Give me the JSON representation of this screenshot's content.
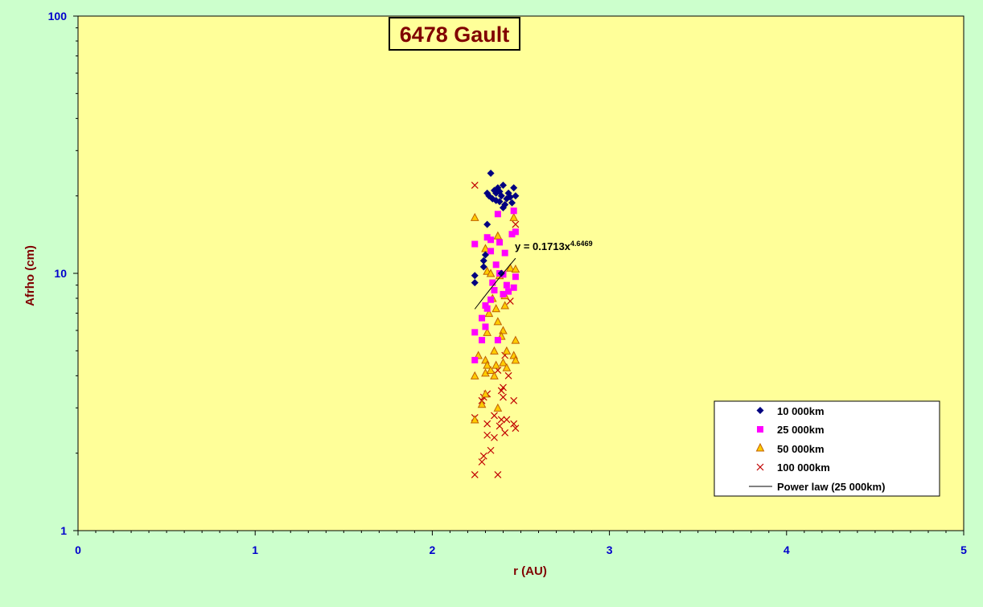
{
  "chart_data": {
    "type": "scatter",
    "title": "6478 Gault",
    "xlabel": "r (AU)",
    "ylabel": "Afrho (cm)",
    "xlim": [
      0,
      5
    ],
    "ylim": [
      1,
      100
    ],
    "y_scale": "log",
    "x_ticks": [
      "0",
      "1",
      "2",
      "3",
      "4",
      "5"
    ],
    "y_ticks": [
      "1",
      "10",
      "100"
    ],
    "grid": false,
    "legend_position": "bottom-right",
    "colors": {
      "page_background": "#ccffcc",
      "plot_background": "#ffff99",
      "title_text": "#800000",
      "axis_label": "#800000",
      "tick_label": "#0000cc"
    },
    "series": [
      {
        "name": "10 000km",
        "marker": "diamond",
        "color": "#000080",
        "points": [
          [
            2.33,
            24.5
          ],
          [
            2.31,
            20.5
          ],
          [
            2.32,
            20.0
          ],
          [
            2.34,
            19.5
          ],
          [
            2.35,
            21.0
          ],
          [
            2.36,
            20.5
          ],
          [
            2.37,
            21.5
          ],
          [
            2.38,
            19.0
          ],
          [
            2.39,
            20.0
          ],
          [
            2.4,
            22.0
          ],
          [
            2.41,
            18.5
          ],
          [
            2.42,
            19.5
          ],
          [
            2.43,
            20.5
          ],
          [
            2.44,
            19.8
          ],
          [
            2.45,
            18.8
          ],
          [
            2.46,
            21.5
          ],
          [
            2.47,
            20.0
          ],
          [
            2.4,
            18.0
          ],
          [
            2.38,
            20.8
          ],
          [
            2.36,
            19.2
          ],
          [
            2.31,
            15.5
          ],
          [
            2.3,
            11.8
          ],
          [
            2.29,
            11.2
          ],
          [
            2.29,
            10.6
          ],
          [
            2.24,
            9.8
          ],
          [
            2.24,
            9.2
          ],
          [
            2.39,
            10.0
          ]
        ]
      },
      {
        "name": "25 000km",
        "marker": "square",
        "color": "#ff00ff",
        "points": [
          [
            2.46,
            17.5
          ],
          [
            2.37,
            17.0
          ],
          [
            2.24,
            13.0
          ],
          [
            2.31,
            13.8
          ],
          [
            2.33,
            13.5
          ],
          [
            2.45,
            14.2
          ],
          [
            2.47,
            14.5
          ],
          [
            2.38,
            13.2
          ],
          [
            2.33,
            12.2
          ],
          [
            2.41,
            12.0
          ],
          [
            2.36,
            10.8
          ],
          [
            2.38,
            10.0
          ],
          [
            2.4,
            9.9
          ],
          [
            2.34,
            9.2
          ],
          [
            2.42,
            9.0
          ],
          [
            2.46,
            8.8
          ],
          [
            2.47,
            9.7
          ],
          [
            2.35,
            8.6
          ],
          [
            2.4,
            8.3
          ],
          [
            2.43,
            8.5
          ],
          [
            2.33,
            7.9
          ],
          [
            2.3,
            7.5
          ],
          [
            2.31,
            7.3
          ],
          [
            2.28,
            6.7
          ],
          [
            2.3,
            6.2
          ],
          [
            2.24,
            5.9
          ],
          [
            2.28,
            5.5
          ],
          [
            2.37,
            5.5
          ],
          [
            2.24,
            4.6
          ]
        ]
      },
      {
        "name": "50 000km",
        "marker": "triangle",
        "color": "#ff9900",
        "points": [
          [
            2.24,
            16.5
          ],
          [
            2.46,
            16.5
          ],
          [
            2.37,
            14.0
          ],
          [
            2.3,
            12.5
          ],
          [
            2.31,
            10.2
          ],
          [
            2.33,
            10.0
          ],
          [
            2.38,
            9.8
          ],
          [
            2.44,
            10.5
          ],
          [
            2.47,
            10.4
          ],
          [
            2.41,
            8.2
          ],
          [
            2.34,
            8.0
          ],
          [
            2.36,
            7.3
          ],
          [
            2.41,
            7.5
          ],
          [
            2.32,
            7.0
          ],
          [
            2.37,
            6.5
          ],
          [
            2.31,
            5.9
          ],
          [
            2.4,
            6.0
          ],
          [
            2.39,
            5.7
          ],
          [
            2.47,
            5.5
          ],
          [
            2.26,
            4.8
          ],
          [
            2.3,
            4.6
          ],
          [
            2.35,
            5.0
          ],
          [
            2.42,
            5.0
          ],
          [
            2.46,
            4.8
          ],
          [
            2.47,
            4.6
          ],
          [
            2.31,
            4.4
          ],
          [
            2.36,
            4.4
          ],
          [
            2.4,
            4.5
          ],
          [
            2.42,
            4.3
          ],
          [
            2.3,
            4.1
          ],
          [
            2.33,
            4.2
          ],
          [
            2.35,
            4.0
          ],
          [
            2.24,
            4.0
          ],
          [
            2.28,
            3.1
          ],
          [
            2.3,
            3.4
          ],
          [
            2.37,
            3.0
          ],
          [
            2.24,
            2.7
          ]
        ]
      },
      {
        "name": "100 000km",
        "marker": "x",
        "color": "#c00000",
        "points": [
          [
            2.24,
            22.0
          ],
          [
            2.47,
            15.5
          ],
          [
            2.44,
            7.8
          ],
          [
            2.41,
            4.8
          ],
          [
            2.37,
            4.2
          ],
          [
            2.43,
            4.0
          ],
          [
            2.4,
            3.6
          ],
          [
            2.39,
            3.5
          ],
          [
            2.31,
            3.4
          ],
          [
            2.29,
            3.3
          ],
          [
            2.46,
            3.2
          ],
          [
            2.4,
            3.3
          ],
          [
            2.28,
            3.2
          ],
          [
            2.35,
            2.8
          ],
          [
            2.39,
            2.7
          ],
          [
            2.24,
            2.75
          ],
          [
            2.42,
            2.7
          ],
          [
            2.46,
            2.6
          ],
          [
            2.31,
            2.6
          ],
          [
            2.38,
            2.55
          ],
          [
            2.47,
            2.5
          ],
          [
            2.41,
            2.4
          ],
          [
            2.31,
            2.35
          ],
          [
            2.35,
            2.3
          ],
          [
            2.33,
            2.05
          ],
          [
            2.29,
            1.95
          ],
          [
            2.28,
            1.85
          ],
          [
            2.37,
            1.65
          ],
          [
            2.24,
            1.65
          ]
        ]
      },
      {
        "name": "Power law (25 000km)",
        "type": "trendline",
        "color": "#000000",
        "x_range": [
          2.24,
          2.47
        ],
        "coefficient": 0.1713,
        "exponent": 4.6469
      }
    ],
    "annotations": [
      {
        "id": "trend_eq",
        "text": "y = 0.1713x",
        "sup": "4.6469",
        "x": 2.45,
        "y": 12.0
      }
    ]
  }
}
